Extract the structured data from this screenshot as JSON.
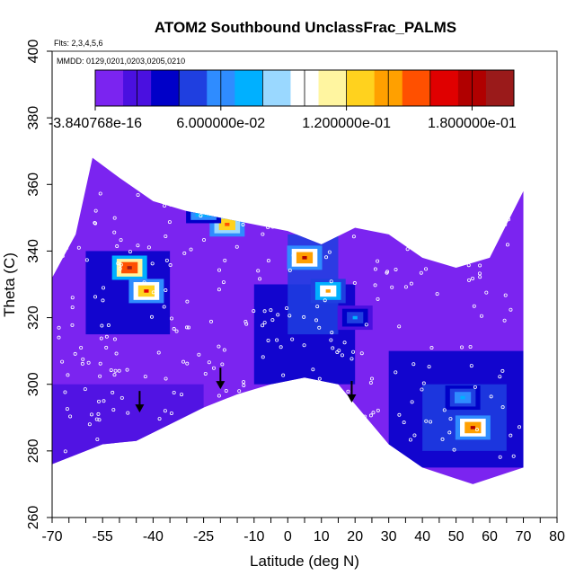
{
  "chart_data": {
    "type": "heatmap",
    "title": "ATOM2 Southbound UnclassFrac_PALMS",
    "annotations": [
      "Flts: 2,3,4,5,6",
      "MMDD: 0129,0201,0203,0205,0210"
    ],
    "xlabel": "Latitude (deg N)",
    "ylabel": "Theta (C)",
    "xlim": [
      -70,
      80
    ],
    "ylim": [
      260,
      400
    ],
    "x_tick_labels": [
      "-70",
      "-55",
      "-40",
      "-25",
      "-10",
      "0",
      "10",
      "20",
      "30",
      "40",
      "50",
      "60",
      "70",
      "80"
    ],
    "x_tick_values": [
      -70,
      -55,
      -40,
      -25,
      -10,
      0,
      10,
      20,
      30,
      40,
      50,
      60,
      70,
      80
    ],
    "y_tick_labels": [
      "260",
      "280",
      "300",
      "320",
      "340",
      "360",
      "380",
      "400"
    ],
    "y_tick_values": [
      260,
      280,
      300,
      320,
      340,
      360,
      380,
      400
    ],
    "colorbar": {
      "range": [
        -3.840768e-16,
        0.2
      ],
      "tick_labels": [
        "-3.840768e-16",
        "6.000000e-02",
        "1.200000e-01",
        "1.800000e-01"
      ],
      "tick_values": [
        0,
        0.06,
        0.12,
        0.18
      ],
      "colors": [
        "#7b24f0",
        "#4a10e0",
        "#0000c8",
        "#1f3fe0",
        "#2f8cff",
        "#00b0ff",
        "#9ad8ff",
        "#ffffff",
        "#fff5a0",
        "#ffd21e",
        "#ffa000",
        "#ff5000",
        "#e00000",
        "#b00000",
        "#9a1a1a"
      ]
    },
    "domain_outline": {
      "x": [
        -70,
        -70,
        -63,
        -58,
        -50,
        -40,
        -30,
        -20,
        -10,
        0,
        10,
        20,
        30,
        40,
        50,
        60,
        70,
        70,
        55,
        40,
        30,
        15,
        5,
        -5,
        -15,
        -25,
        -35,
        -45,
        -55,
        -65,
        -70
      ],
      "y": [
        276,
        332,
        345,
        368,
        362,
        355,
        352,
        350,
        348,
        346,
        342,
        347,
        345,
        338,
        335,
        338,
        358,
        275,
        270,
        275,
        282,
        300,
        302,
        300,
        297,
        293,
        288,
        283,
        282,
        278,
        276
      ]
    },
    "hotspots": [
      {
        "lat": -47,
        "theta": 335,
        "value": 0.2
      },
      {
        "lat": -42,
        "theta": 328,
        "value": 0.17
      },
      {
        "lat": -18,
        "theta": 348,
        "value": 0.16
      },
      {
        "lat": -25,
        "theta": 352,
        "value": 0.1
      },
      {
        "lat": 5,
        "theta": 338,
        "value": 0.18
      },
      {
        "lat": 12,
        "theta": 328,
        "value": 0.14
      },
      {
        "lat": 55,
        "theta": 287,
        "value": 0.18
      },
      {
        "lat": 52,
        "theta": 296,
        "value": 0.08
      },
      {
        "lat": 20,
        "theta": 320,
        "value": 0.07
      }
    ],
    "arrows": [
      {
        "lat": -44,
        "theta": 298
      },
      {
        "lat": -20,
        "theta": 305
      },
      {
        "lat": 19,
        "theta": 301
      }
    ]
  }
}
